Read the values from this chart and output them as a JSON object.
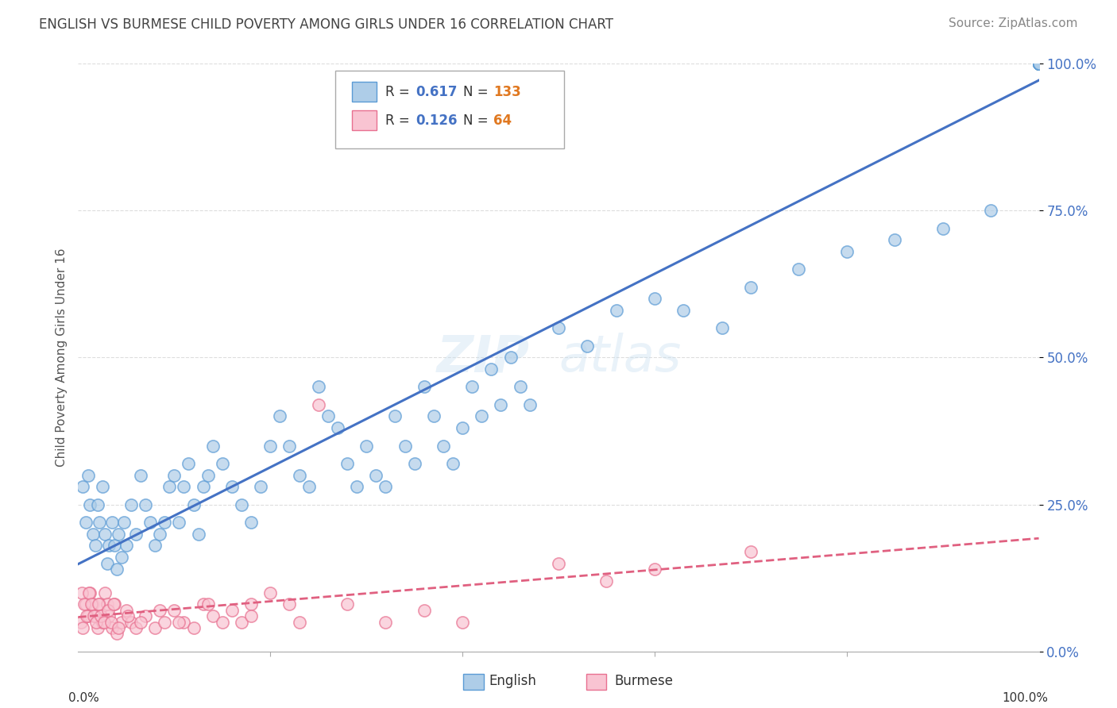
{
  "title": "ENGLISH VS BURMESE CHILD POVERTY AMONG GIRLS UNDER 16 CORRELATION CHART",
  "source": "Source: ZipAtlas.com",
  "ylabel": "Child Poverty Among Girls Under 16",
  "ytick_labels": [
    "0.0%",
    "25.0%",
    "50.0%",
    "75.0%",
    "100.0%"
  ],
  "ytick_values": [
    0,
    25,
    50,
    75,
    100
  ],
  "xlim": [
    0,
    100
  ],
  "ylim": [
    0,
    100
  ],
  "english_R": 0.617,
  "english_N": 133,
  "burmese_R": 0.126,
  "burmese_N": 64,
  "english_color": "#aecde8",
  "burmese_color": "#f9c4d2",
  "english_edge_color": "#5b9bd5",
  "burmese_edge_color": "#e87090",
  "english_line_color": "#4472c4",
  "burmese_line_color": "#e06080",
  "legend_label_english": "English",
  "legend_label_burmese": "Burmese",
  "watermark": "ZIPatlas",
  "background_color": "#ffffff",
  "title_color": "#444444",
  "source_color": "#888888",
  "legend_R_color": "#4472c4",
  "legend_N_color": "#e07820",
  "ytick_color": "#4472c4",
  "english_x": [
    0.5,
    0.8,
    1.0,
    1.2,
    1.5,
    1.8,
    2.0,
    2.2,
    2.5,
    2.8,
    3.0,
    3.2,
    3.5,
    3.8,
    4.0,
    4.2,
    4.5,
    4.8,
    5.0,
    5.5,
    6.0,
    6.5,
    7.0,
    7.5,
    8.0,
    8.5,
    9.0,
    9.5,
    10.0,
    10.5,
    11.0,
    11.5,
    12.0,
    12.5,
    13.0,
    13.5,
    14.0,
    15.0,
    16.0,
    17.0,
    18.0,
    19.0,
    20.0,
    21.0,
    22.0,
    23.0,
    24.0,
    25.0,
    26.0,
    27.0,
    28.0,
    29.0,
    30.0,
    31.0,
    32.0,
    33.0,
    34.0,
    35.0,
    36.0,
    37.0,
    38.0,
    39.0,
    40.0,
    41.0,
    42.0,
    43.0,
    44.0,
    45.0,
    46.0,
    47.0,
    50.0,
    53.0,
    56.0,
    60.0,
    63.0,
    67.0,
    70.0,
    75.0,
    80.0,
    85.0,
    90.0,
    95.0,
    100.0,
    100.0,
    100.0,
    100.0,
    100.0,
    100.0,
    100.0,
    100.0,
    100.0,
    100.0,
    100.0,
    100.0,
    100.0,
    100.0,
    100.0,
    100.0,
    100.0,
    100.0,
    100.0,
    100.0,
    100.0,
    100.0,
    100.0,
    100.0,
    100.0,
    100.0,
    100.0,
    100.0,
    100.0,
    100.0,
    100.0,
    100.0,
    100.0,
    100.0,
    100.0,
    100.0,
    100.0,
    100.0,
    100.0,
    100.0,
    100.0,
    100.0,
    100.0,
    100.0,
    100.0,
    100.0,
    100.0,
    100.0,
    100.0,
    100.0,
    100.0
  ],
  "english_y": [
    28,
    22,
    30,
    25,
    20,
    18,
    25,
    22,
    28,
    20,
    15,
    18,
    22,
    18,
    14,
    20,
    16,
    22,
    18,
    25,
    20,
    30,
    25,
    22,
    18,
    20,
    22,
    28,
    30,
    22,
    28,
    32,
    25,
    20,
    28,
    30,
    35,
    32,
    28,
    25,
    22,
    28,
    35,
    40,
    35,
    30,
    28,
    45,
    40,
    38,
    32,
    28,
    35,
    30,
    28,
    40,
    35,
    32,
    45,
    40,
    35,
    32,
    38,
    45,
    40,
    48,
    42,
    50,
    45,
    42,
    55,
    52,
    58,
    60,
    58,
    55,
    62,
    65,
    68,
    70,
    72,
    75,
    100,
    100,
    100,
    100,
    100,
    100,
    100,
    100,
    100,
    100,
    100,
    100,
    100,
    100,
    100,
    100,
    100,
    100,
    100,
    100,
    100,
    100,
    100,
    100,
    100,
    100,
    100,
    100,
    100,
    100,
    100,
    100,
    100,
    100,
    100,
    100,
    100,
    100,
    100,
    100,
    100,
    100,
    100,
    100,
    100,
    100,
    100,
    100,
    100,
    100,
    100
  ],
  "burmese_x": [
    0.3,
    0.5,
    0.8,
    1.0,
    1.2,
    1.5,
    1.8,
    2.0,
    2.2,
    2.5,
    2.8,
    3.0,
    3.2,
    3.5,
    3.8,
    4.0,
    4.5,
    5.0,
    5.5,
    6.0,
    7.0,
    8.0,
    9.0,
    10.0,
    11.0,
    12.0,
    13.0,
    14.0,
    15.0,
    16.0,
    17.0,
    18.0,
    20.0,
    22.0,
    25.0,
    28.0,
    32.0,
    36.0,
    40.0,
    50.0,
    55.0,
    60.0,
    70.0,
    0.4,
    0.6,
    0.9,
    1.1,
    1.4,
    1.6,
    1.9,
    2.1,
    2.4,
    2.7,
    3.1,
    3.4,
    3.7,
    4.2,
    5.2,
    6.5,
    8.5,
    10.5,
    13.5,
    18.0,
    23.0
  ],
  "burmese_y": [
    5,
    4,
    8,
    6,
    10,
    8,
    6,
    4,
    8,
    5,
    10,
    8,
    6,
    4,
    8,
    3,
    5,
    7,
    5,
    4,
    6,
    4,
    5,
    7,
    5,
    4,
    8,
    6,
    5,
    7,
    5,
    8,
    10,
    8,
    42,
    8,
    5,
    7,
    5,
    15,
    12,
    14,
    17,
    10,
    8,
    6,
    10,
    8,
    6,
    5,
    8,
    6,
    5,
    7,
    5,
    8,
    4,
    6,
    5,
    7,
    5,
    8,
    6,
    5
  ]
}
